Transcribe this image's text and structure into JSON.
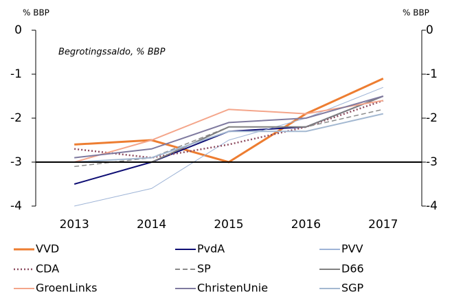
{
  "chart_data": {
    "type": "line",
    "annotation": "Begrotingssaldo, % BBP",
    "y_label": "% BBP",
    "y2_label": "% BBP",
    "categories": [
      "2013",
      "2014",
      "2015",
      "2016",
      "2017"
    ],
    "ylim": [
      -4,
      0
    ],
    "yticks": [
      0,
      -1,
      -2,
      -3,
      -4
    ],
    "y2lim": [
      -4,
      0
    ],
    "y2ticks": [
      0,
      -1,
      -2,
      -3,
      -4
    ],
    "hline": -3,
    "series": [
      {
        "name": "VVD",
        "color": "#ed7d31",
        "style": "solid",
        "line_width": 3,
        "values": [
          -2.6,
          -2.5,
          -3.0,
          -1.9,
          -1.1
        ]
      },
      {
        "name": "PvdA",
        "color": "#0d0d73",
        "style": "solid",
        "line_width": 2,
        "values": [
          -3.5,
          -3.0,
          -2.3,
          -2.2,
          -1.5
        ]
      },
      {
        "name": "PVV",
        "color": "#9db3d6",
        "style": "solid",
        "line_width": 1,
        "values": [
          -4.0,
          -3.6,
          -2.5,
          -2.0,
          -1.3
        ]
      },
      {
        "name": "CDA",
        "color": "#8c4a5e",
        "style": "dotted",
        "line_width": 2.5,
        "values": [
          -2.7,
          -2.9,
          -2.6,
          -2.2,
          -1.6
        ]
      },
      {
        "name": "SP",
        "color": "#8a8a8a",
        "style": "dashed",
        "line_width": 1.5,
        "values": [
          -3.1,
          -2.9,
          -2.2,
          -2.2,
          -1.8
        ]
      },
      {
        "name": "D66",
        "color": "#7f7f7f",
        "style": "solid",
        "line_width": 2,
        "values": [
          -3.0,
          -3.0,
          -2.2,
          -2.2,
          -1.5
        ]
      },
      {
        "name": "GroenLinks",
        "color": "#f4a58a",
        "style": "solid",
        "line_width": 2,
        "values": [
          -3.0,
          -2.5,
          -1.8,
          -1.9,
          -1.6
        ]
      },
      {
        "name": "ChristenUnie",
        "color": "#7f7a9f",
        "style": "solid",
        "line_width": 2,
        "values": [
          -2.9,
          -2.7,
          -2.1,
          -2.0,
          -1.5
        ]
      },
      {
        "name": "SGP",
        "color": "#a3b8d1",
        "style": "solid",
        "line_width": 2,
        "values": [
          -3.0,
          -2.9,
          -2.3,
          -2.3,
          -1.9
        ]
      }
    ]
  }
}
